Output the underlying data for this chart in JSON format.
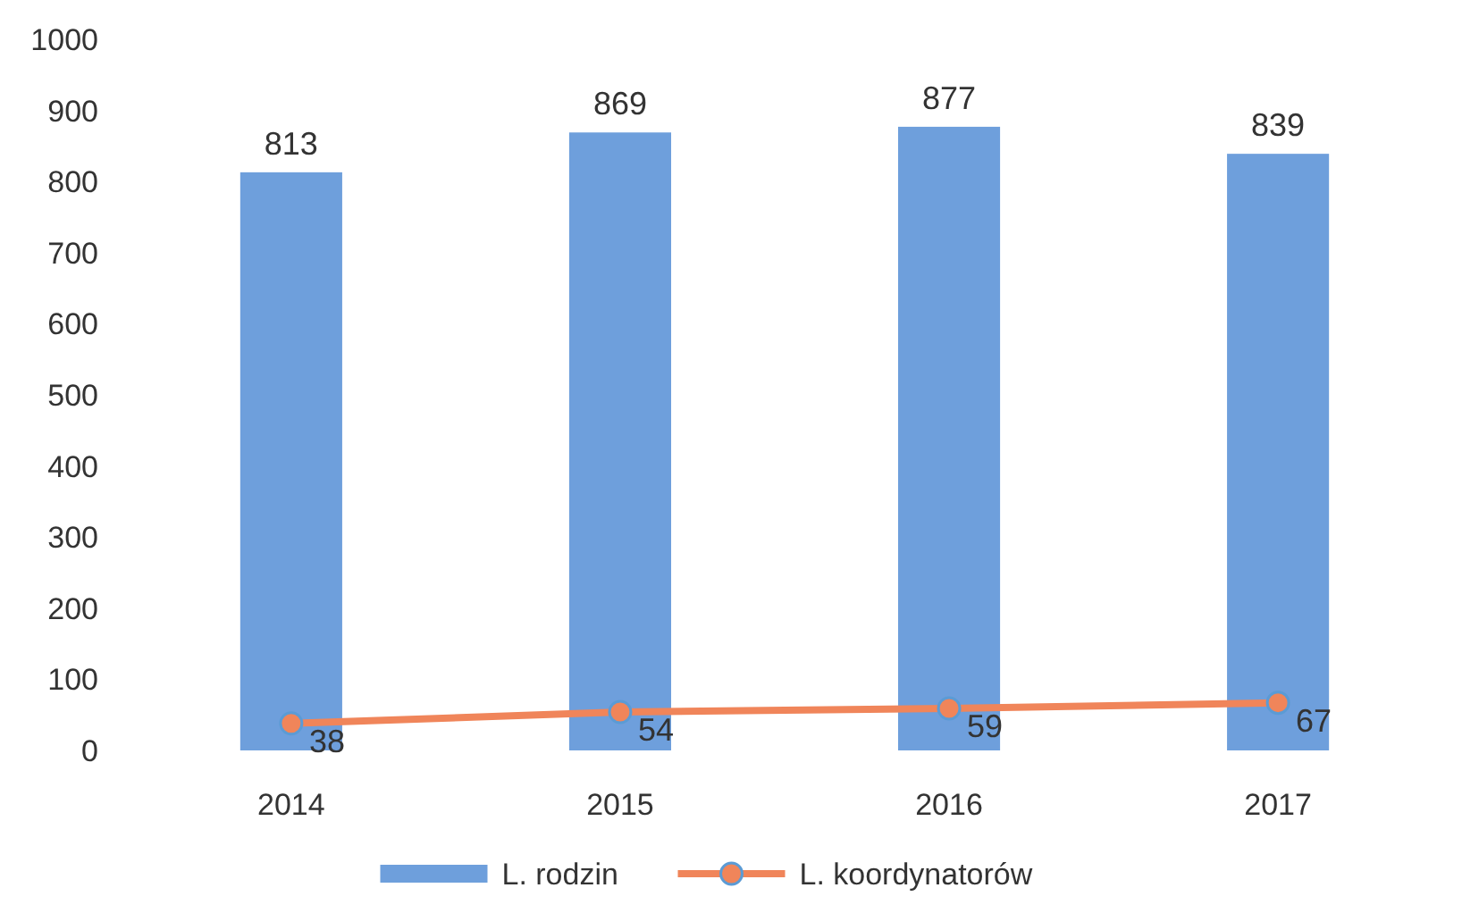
{
  "chart_data": {
    "type": "bar",
    "categories": [
      "2014",
      "2015",
      "2016",
      "2017"
    ],
    "series": [
      {
        "name": "L. rodzin",
        "color": "#6e9fdc",
        "values": [
          813,
          869,
          877,
          839
        ]
      },
      {
        "name": "L. koordynatorów",
        "type": "line",
        "color": "#f0855a",
        "values": [
          38,
          54,
          59,
          67
        ]
      }
    ],
    "ylim": [
      0,
      1000
    ],
    "yticks": [
      0,
      100,
      200,
      300,
      400,
      500,
      600,
      700,
      800,
      900,
      1000
    ],
    "data_labels": true,
    "legend": "bottom",
    "marker": "circle",
    "line_style": "solid",
    "grid": false
  }
}
